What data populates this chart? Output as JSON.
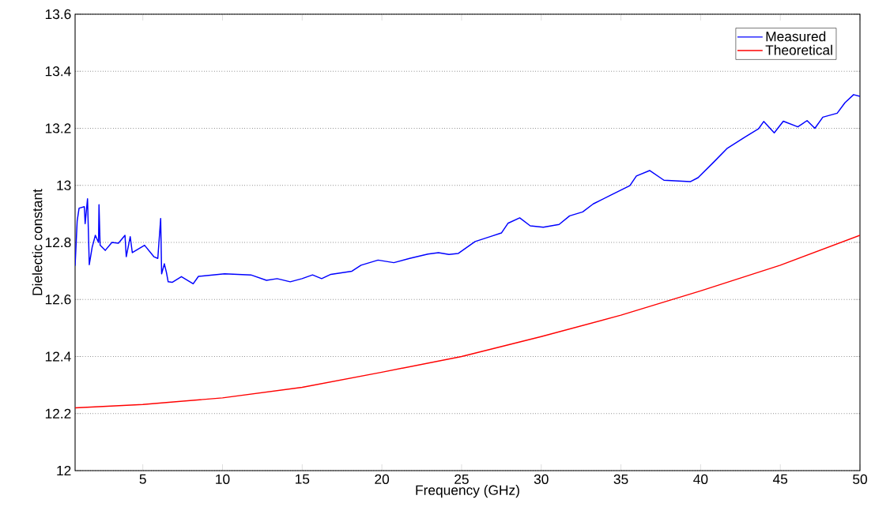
{
  "chart_data": {
    "type": "line",
    "xlabel": "Frequency (GHz)",
    "ylabel": "Dielectic constant",
    "xlim": [
      0.75,
      50
    ],
    "xticks": [
      5,
      10,
      15,
      20,
      25,
      30,
      35,
      40,
      45,
      50
    ],
    "ylim": [
      12,
      13.6
    ],
    "yticks": [
      12,
      12.2,
      12.4,
      12.6,
      12.8,
      13,
      13.2,
      13.4,
      13.6
    ],
    "grid": "y",
    "legend": "top right",
    "marker": "none",
    "line_style": "solid",
    "series": [
      {
        "name": "Measured",
        "color": "#0000ff",
        "x": [
          0.75,
          0.88,
          1.0,
          1.33,
          1.38,
          1.53,
          1.64,
          1.82,
          2.02,
          2.22,
          2.25,
          2.32,
          2.64,
          3.06,
          3.47,
          3.88,
          3.96,
          4.21,
          4.34,
          5.11,
          5.69,
          5.94,
          6.12,
          6.18,
          6.35,
          6.48,
          6.59,
          6.84,
          7.42,
          8.16,
          8.49,
          10.13,
          11.78,
          12.76,
          13.43,
          14.25,
          14.99,
          15.65,
          16.22,
          16.8,
          18.12,
          18.69,
          19.76,
          20.75,
          21.74,
          22.89,
          23.55,
          24.21,
          24.78,
          25.85,
          26.84,
          27.5,
          27.91,
          28.65,
          29.31,
          30.13,
          31.12,
          31.78,
          32.6,
          33.26,
          34.41,
          35.56,
          35.97,
          36.8,
          37.7,
          39.35,
          39.84,
          40.83,
          41.65,
          42.8,
          43.63,
          43.96,
          44.62,
          45.19,
          46.1,
          46.68,
          47.17,
          47.67,
          48.57,
          49.06,
          49.6,
          50
        ],
        "values": [
          12.718,
          12.875,
          12.92,
          12.925,
          12.866,
          12.953,
          12.722,
          12.783,
          12.825,
          12.8,
          12.932,
          12.79,
          12.772,
          12.8,
          12.797,
          12.825,
          12.75,
          12.82,
          12.764,
          12.79,
          12.75,
          12.744,
          12.884,
          12.69,
          12.725,
          12.695,
          12.662,
          12.66,
          12.68,
          12.655,
          12.681,
          12.69,
          12.686,
          12.667,
          12.673,
          12.662,
          12.673,
          12.686,
          12.673,
          12.688,
          12.699,
          12.72,
          12.738,
          12.729,
          12.744,
          12.759,
          12.764,
          12.758,
          12.761,
          12.803,
          12.821,
          12.833,
          12.867,
          12.886,
          12.858,
          12.853,
          12.863,
          12.893,
          12.907,
          12.935,
          12.967,
          12.999,
          13.033,
          13.052,
          13.018,
          13.013,
          13.027,
          13.082,
          13.129,
          13.17,
          13.198,
          13.224,
          13.184,
          13.225,
          13.205,
          13.227,
          13.2,
          13.239,
          13.253,
          13.29,
          13.318,
          13.312
        ]
      },
      {
        "name": "Theoretical",
        "color": "#ff0000",
        "x": [
          0.75,
          5,
          10,
          15,
          20,
          25,
          30,
          35,
          40,
          45,
          50
        ],
        "values": [
          12.22,
          12.232,
          12.255,
          12.292,
          12.345,
          12.4,
          12.47,
          12.545,
          12.63,
          12.72,
          12.825
        ]
      }
    ]
  }
}
